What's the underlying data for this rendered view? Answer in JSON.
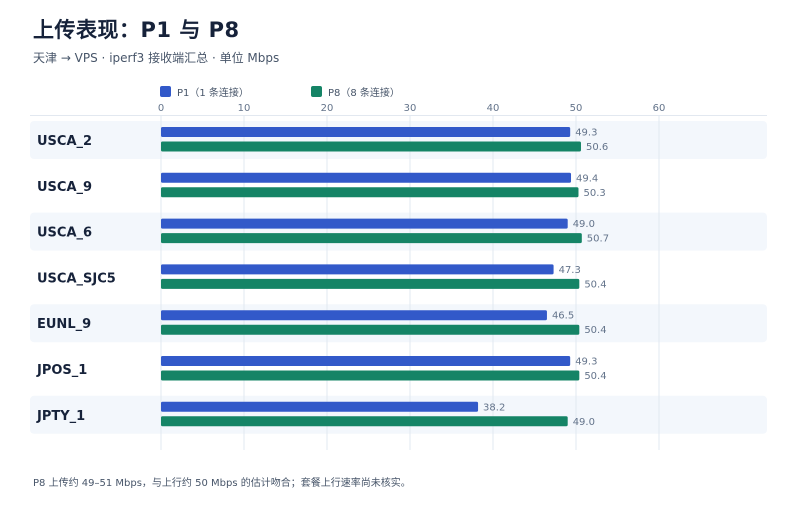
{
  "header": {
    "title": "上传表现：P1 与 P8",
    "subtitle": "天津 → VPS · iperf3 接收端汇总 · 单位 Mbps"
  },
  "footnote": "P8 上传约 49–51 Mbps，与上行约 50 Mbps 的估计吻合；套餐上行速率尚未核实。",
  "colors": {
    "p1": "#3259c9",
    "p8": "#158466",
    "row_bg": "#f3f7fc",
    "grid": "#e2e8f0"
  },
  "chart_data": {
    "type": "bar",
    "orientation": "horizontal",
    "categories": [
      "USCA_2",
      "USCA_9",
      "USCA_6",
      "USCA_SJC5",
      "EUNL_9",
      "JPOS_1",
      "JPTY_1"
    ],
    "series": [
      {
        "name": "P1（1 条连接）",
        "values": [
          49.3,
          49.4,
          49.0,
          47.3,
          46.5,
          49.3,
          38.2
        ]
      },
      {
        "name": "P8（8 条连接）",
        "values": [
          50.6,
          50.3,
          50.7,
          50.4,
          50.4,
          50.4,
          49.0
        ]
      }
    ],
    "xlim": [
      0,
      60
    ],
    "xticks": [
      0,
      10,
      20,
      30,
      40,
      50,
      60
    ],
    "value_labels": [
      [
        "49.3",
        "49.4",
        "49.0",
        "47.3",
        "46.5",
        "49.3",
        "38.2"
      ],
      [
        "50.6",
        "50.3",
        "50.7",
        "50.4",
        "50.4",
        "50.4",
        "49.0"
      ]
    ],
    "legend_position": "top-left",
    "grid": true
  }
}
